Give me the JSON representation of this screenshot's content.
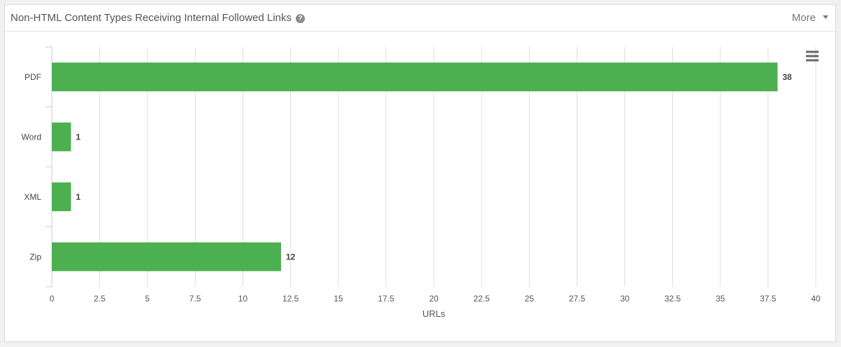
{
  "panel": {
    "title": "Non-HTML Content Types Receiving Internal Followed Links",
    "help_icon": "question-circle-icon",
    "more_label": "More",
    "more_icon": "caret-down-icon"
  },
  "chart_menu_icon": "hamburger-menu-icon",
  "chart_data": {
    "type": "bar",
    "orientation": "horizontal",
    "categories": [
      "PDF",
      "Word",
      "XML",
      "Zip"
    ],
    "values": [
      38,
      1,
      1,
      12
    ],
    "data_labels": [
      "38",
      "1",
      "1",
      "12"
    ],
    "title": "",
    "xlabel": "URLs",
    "ylabel": "",
    "xlim": [
      0,
      40
    ],
    "x_ticks": [
      "0",
      "2.5",
      "5",
      "7.5",
      "10",
      "12.5",
      "15",
      "17.5",
      "20",
      "22.5",
      "25",
      "27.5",
      "30",
      "32.5",
      "35",
      "37.5",
      "40"
    ],
    "grid": true,
    "legend": "none",
    "bar_color": "#4caf50"
  }
}
